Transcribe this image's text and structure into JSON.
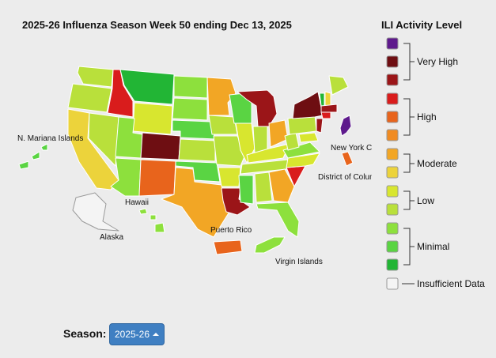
{
  "title": "2025-26 Influenza Season Week 50 ending Dec 13, 2025",
  "colors": {
    "very_high_3": "#5e1a8c",
    "very_high_2": "#6e0e12",
    "very_high_1": "#9b1518",
    "high_3": "#d91c1c",
    "high_2": "#e8641c",
    "high_1": "#f08b22",
    "moderate_2": "#f2a625",
    "moderate_1": "#ecd33b",
    "low_2": "#d8e62f",
    "low_1": "#b9e03b",
    "minimal_3": "#8de03d",
    "minimal_2": "#5ad443",
    "minimal_1": "#22b535",
    "insufficient": "#f4f4f4"
  },
  "map_labels": {
    "n_mariana": "N. Mariana Islands",
    "hawaii": "Hawaii",
    "alaska": "Alaska",
    "puerto_rico": "Puerto Rico",
    "virgin_islands": "Virgin Islands",
    "new_york_city": "New York City",
    "district_of_columbia": "District of Columbia"
  },
  "legend": {
    "title": "ILI Activity Level",
    "groups": {
      "very_high": "Very High",
      "high": "High",
      "moderate": "Moderate",
      "low": "Low",
      "minimal": "Minimal",
      "insufficient": "Insufficient Data"
    }
  },
  "season": {
    "label": "Season:",
    "value": "2025-26"
  }
}
